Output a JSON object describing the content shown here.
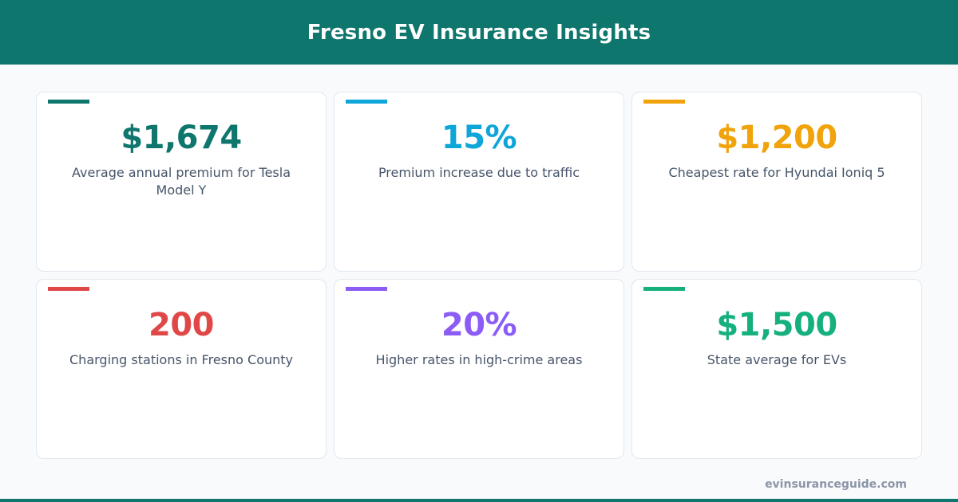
{
  "header": {
    "title": "Fresno EV Insurance Insights",
    "background": "#0f766e"
  },
  "cards": [
    {
      "value": "$1,674",
      "label": "Average annual premium for Tesla Model Y",
      "color": "#0f766e"
    },
    {
      "value": "15%",
      "label": "Premium increase due to traffic",
      "color": "#0ea5d8"
    },
    {
      "value": "$1,200",
      "label": "Cheapest rate for Hyundai Ioniq 5",
      "color": "#f0a30a"
    },
    {
      "value": "200",
      "label": "Charging stations in Fresno County",
      "color": "#e04848"
    },
    {
      "value": "20%",
      "label": "Higher rates in high-crime areas",
      "color": "#8b5cf6"
    },
    {
      "value": "$1,500",
      "label": "State average for EVs",
      "color": "#16b07f"
    }
  ],
  "footer": {
    "url": "evinsuranceguide.com"
  }
}
